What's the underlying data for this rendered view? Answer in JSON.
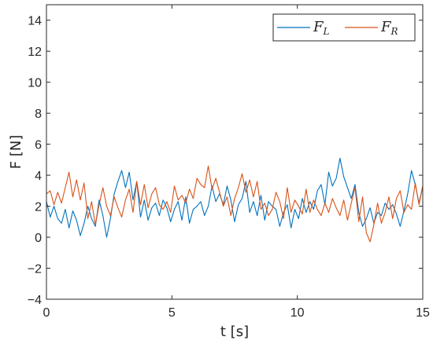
{
  "chart_data": {
    "type": "line",
    "xlabel": "t [s]",
    "ylabel": "F [N]",
    "xlim": [
      0,
      15
    ],
    "ylim": [
      -4,
      15
    ],
    "xticks": [
      "0",
      "5",
      "10",
      "15"
    ],
    "yticks": [
      "14",
      "12",
      "10",
      "8",
      "6",
      "4",
      "2",
      "0",
      "−2",
      "−4"
    ],
    "grid": false,
    "legend_position": "top-right",
    "colors": {
      "F_L": "#0072BD",
      "F_R": "#D95319",
      "axis": "#262626"
    },
    "series": [
      {
        "name": "F_L",
        "label_main": "F",
        "label_sub": "L",
        "x": [
          0.0,
          0.15,
          0.3,
          0.45,
          0.6,
          0.75,
          0.9,
          1.05,
          1.2,
          1.35,
          1.5,
          1.65,
          1.8,
          1.95,
          2.1,
          2.25,
          2.4,
          2.55,
          2.7,
          2.85,
          3.0,
          3.15,
          3.3,
          3.45,
          3.6,
          3.75,
          3.9,
          4.05,
          4.2,
          4.35,
          4.5,
          4.65,
          4.8,
          4.95,
          5.1,
          5.25,
          5.4,
          5.55,
          5.7,
          5.85,
          6.0,
          6.15,
          6.3,
          6.45,
          6.6,
          6.75,
          6.9,
          7.05,
          7.2,
          7.35,
          7.5,
          7.65,
          7.8,
          7.95,
          8.1,
          8.25,
          8.4,
          8.55,
          8.7,
          8.85,
          9.0,
          9.15,
          9.3,
          9.45,
          9.6,
          9.75,
          9.9,
          10.05,
          10.2,
          10.35,
          10.5,
          10.65,
          10.8,
          10.95,
          11.1,
          11.25,
          11.4,
          11.55,
          11.7,
          11.85,
          12.0,
          12.15,
          12.3,
          12.45,
          12.6,
          12.75,
          12.9,
          13.05,
          13.2,
          13.35,
          13.5,
          13.65,
          13.8,
          13.95,
          14.1,
          14.25,
          14.4,
          14.55,
          14.7,
          14.85,
          15.0
        ],
        "values": [
          2.3,
          1.3,
          2.0,
          1.2,
          0.9,
          1.8,
          0.6,
          1.7,
          1.1,
          0.1,
          0.9,
          2.0,
          1.2,
          0.7,
          2.4,
          1.4,
          0.0,
          1.2,
          2.8,
          3.6,
          4.3,
          3.2,
          4.2,
          2.4,
          3.6,
          1.3,
          2.4,
          1.1,
          1.9,
          2.2,
          1.4,
          2.4,
          1.9,
          1.0,
          1.8,
          2.3,
          1.1,
          2.6,
          0.9,
          1.8,
          2.0,
          2.3,
          1.4,
          2.0,
          3.3,
          2.3,
          2.8,
          2.1,
          3.3,
          2.4,
          1.0,
          2.1,
          2.5,
          3.6,
          1.6,
          2.3,
          1.4,
          2.7,
          1.1,
          2.3,
          2.0,
          1.8,
          0.7,
          1.6,
          2.1,
          0.6,
          1.8,
          1.2,
          2.5,
          1.6,
          2.3,
          1.8,
          3.0,
          3.4,
          2.1,
          4.2,
          3.3,
          3.8,
          5.1,
          3.9,
          3.2,
          2.5,
          3.4,
          1.6,
          0.7,
          1.2,
          1.9,
          0.9,
          1.6,
          1.4,
          2.2,
          1.8,
          2.1,
          1.5,
          0.7,
          1.7,
          2.8,
          4.3,
          3.4,
          2.2,
          3.3
        ]
      },
      {
        "name": "F_R",
        "label_main": "F",
        "label_sub": "R",
        "x": [
          0.0,
          0.15,
          0.3,
          0.45,
          0.6,
          0.75,
          0.9,
          1.05,
          1.2,
          1.35,
          1.5,
          1.65,
          1.8,
          1.95,
          2.1,
          2.25,
          2.4,
          2.55,
          2.7,
          2.85,
          3.0,
          3.15,
          3.3,
          3.45,
          3.6,
          3.75,
          3.9,
          4.05,
          4.2,
          4.35,
          4.5,
          4.65,
          4.8,
          4.95,
          5.1,
          5.25,
          5.4,
          5.55,
          5.7,
          5.85,
          6.0,
          6.15,
          6.3,
          6.45,
          6.6,
          6.75,
          6.9,
          7.05,
          7.2,
          7.35,
          7.5,
          7.65,
          7.8,
          7.95,
          8.1,
          8.25,
          8.4,
          8.55,
          8.7,
          8.85,
          9.0,
          9.15,
          9.3,
          9.45,
          9.6,
          9.75,
          9.9,
          10.05,
          10.2,
          10.35,
          10.5,
          10.65,
          10.8,
          10.95,
          11.1,
          11.25,
          11.4,
          11.55,
          11.7,
          11.85,
          12.0,
          12.15,
          12.3,
          12.45,
          12.6,
          12.75,
          12.9,
          13.05,
          13.2,
          13.35,
          13.5,
          13.65,
          13.8,
          13.95,
          14.1,
          14.25,
          14.4,
          14.55,
          14.7,
          14.85,
          15.0
        ],
        "values": [
          2.8,
          3.0,
          2.1,
          2.9,
          2.2,
          3.2,
          4.2,
          2.6,
          3.7,
          2.4,
          3.5,
          1.2,
          2.3,
          0.8,
          2.1,
          3.2,
          2.0,
          1.4,
          2.6,
          1.9,
          1.3,
          2.4,
          3.1,
          1.6,
          3.6,
          2.1,
          3.4,
          1.9,
          2.8,
          3.2,
          2.1,
          1.8,
          2.3,
          1.6,
          3.3,
          2.4,
          2.7,
          2.2,
          3.1,
          2.5,
          3.8,
          3.4,
          3.2,
          4.6,
          3.1,
          3.8,
          2.9,
          2.0,
          2.6,
          1.4,
          2.5,
          3.2,
          4.1,
          2.9,
          3.7,
          2.6,
          3.6,
          1.8,
          2.2,
          1.4,
          1.8,
          2.9,
          2.3,
          1.2,
          3.2,
          1.6,
          2.4,
          2.0,
          1.5,
          3.1,
          1.6,
          2.4,
          1.8,
          1.4,
          2.2,
          1.6,
          2.5,
          1.9,
          1.4,
          2.4,
          1.1,
          2.2,
          3.2,
          1.0,
          2.6,
          0.3,
          -0.3,
          0.8,
          2.2,
          0.9,
          1.6,
          2.6,
          1.2,
          2.5,
          3.0,
          1.6,
          2.1,
          1.8,
          3.5,
          2.1,
          3.3
        ]
      }
    ]
  }
}
